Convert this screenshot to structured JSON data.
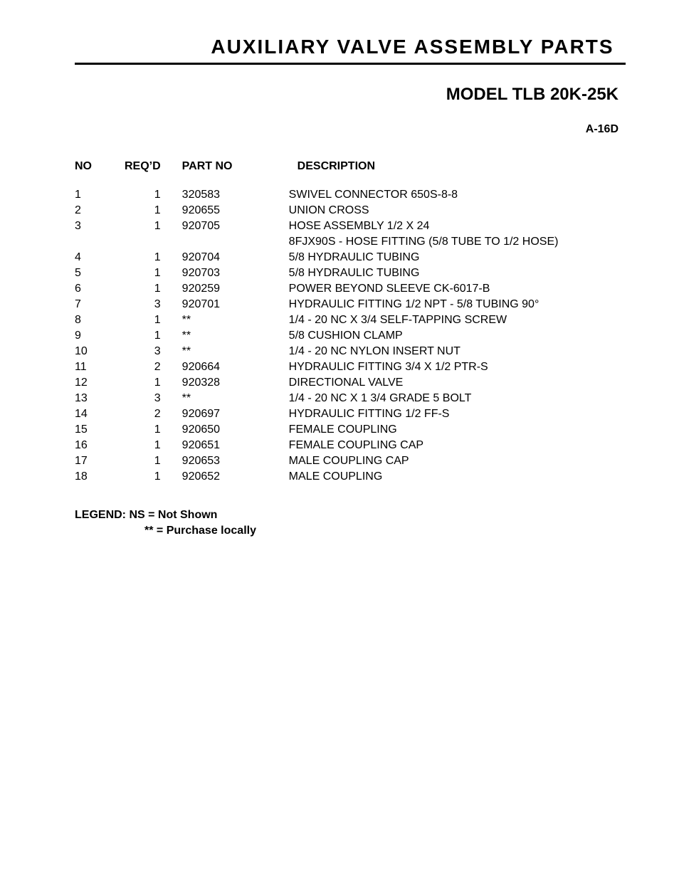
{
  "header": {
    "title": "AUXILIARY VALVE ASSEMBLY PARTS",
    "model": "MODEL TLB 20K-25K",
    "page_code": "A-16D"
  },
  "table": {
    "columns": {
      "no": "NO",
      "reqd": "REQ’D",
      "partno": "PART NO",
      "description": "DESCRIPTION"
    },
    "rows": [
      {
        "no": "1",
        "reqd": "1",
        "partno": "320583",
        "description": "SWIVEL CONNECTOR 650S-8-8"
      },
      {
        "no": "2",
        "reqd": "1",
        "partno": "920655",
        "description": "UNION CROSS"
      },
      {
        "no": "3",
        "reqd": "1",
        "partno": "920705",
        "description": "HOSE ASSEMBLY 1/2 X 24"
      },
      {
        "no": "",
        "reqd": "",
        "partno": "",
        "description": "8FJX90S - HOSE FITTING (5/8 TUBE TO 1/2 HOSE)"
      },
      {
        "no": "4",
        "reqd": "1",
        "partno": "920704",
        "description": "5/8 HYDRAULIC TUBING"
      },
      {
        "no": "5",
        "reqd": "1",
        "partno": "920703",
        "description": "5/8 HYDRAULIC TUBING"
      },
      {
        "no": "6",
        "reqd": "1",
        "partno": "920259",
        "description": "POWER BEYOND SLEEVE CK-6017-B"
      },
      {
        "no": "7",
        "reqd": "3",
        "partno": "920701",
        "description": "HYDRAULIC FITTING 1/2 NPT - 5/8 TUBING 90°"
      },
      {
        "no": "8",
        "reqd": "1",
        "partno": "**",
        "description": "1/4 - 20 NC X 3/4 SELF-TAPPING SCREW"
      },
      {
        "no": "9",
        "reqd": "1",
        "partno": "**",
        "description": "5/8 CUSHION CLAMP"
      },
      {
        "no": "10",
        "reqd": "3",
        "partno": "**",
        "description": "1/4 - 20 NC NYLON INSERT NUT"
      },
      {
        "no": "11",
        "reqd": "2",
        "partno": "920664",
        "description": "HYDRAULIC FITTING 3/4 X 1/2 PTR-S"
      },
      {
        "no": "12",
        "reqd": "1",
        "partno": "920328",
        "description": "DIRECTIONAL VALVE"
      },
      {
        "no": "13",
        "reqd": "3",
        "partno": "**",
        "description": "1/4 - 20 NC X 1 3/4 GRADE 5 BOLT"
      },
      {
        "no": "14",
        "reqd": "2",
        "partno": "920697",
        "description": "HYDRAULIC FITTING 1/2 FF-S"
      },
      {
        "no": "15",
        "reqd": "1",
        "partno": "920650",
        "description": "FEMALE COUPLING"
      },
      {
        "no": "16",
        "reqd": "1",
        "partno": "920651",
        "description": "FEMALE COUPLING CAP"
      },
      {
        "no": "17",
        "reqd": "1",
        "partno": "920653",
        "description": "MALE COUPLING CAP"
      },
      {
        "no": "18",
        "reqd": "1",
        "partno": "920652",
        "description": "MALE COUPLING"
      }
    ]
  },
  "legend": {
    "line1": "LEGEND: NS = Not Shown",
    "line2": "** = Purchase locally"
  }
}
